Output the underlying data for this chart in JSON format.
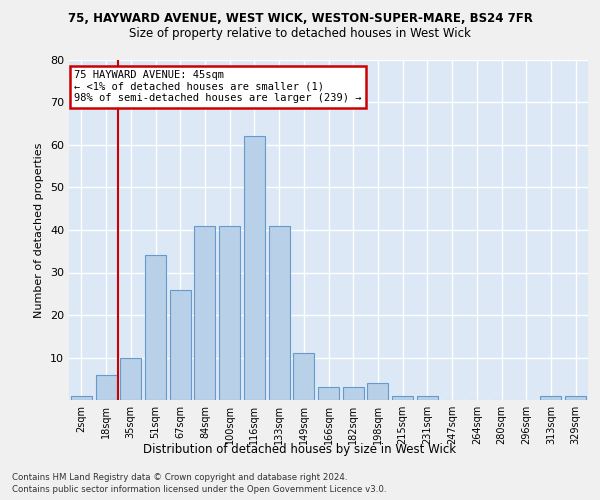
{
  "title1": "75, HAYWARD AVENUE, WEST WICK, WESTON-SUPER-MARE, BS24 7FR",
  "title2": "Size of property relative to detached houses in West Wick",
  "xlabel": "Distribution of detached houses by size in West Wick",
  "ylabel": "Number of detached properties",
  "bins": [
    "2sqm",
    "18sqm",
    "35sqm",
    "51sqm",
    "67sqm",
    "84sqm",
    "100sqm",
    "116sqm",
    "133sqm",
    "149sqm",
    "166sqm",
    "182sqm",
    "198sqm",
    "215sqm",
    "231sqm",
    "247sqm",
    "264sqm",
    "280sqm",
    "296sqm",
    "313sqm",
    "329sqm"
  ],
  "values": [
    1,
    6,
    10,
    34,
    26,
    41,
    41,
    62,
    41,
    11,
    3,
    3,
    4,
    1,
    1,
    0,
    0,
    0,
    0,
    1,
    1
  ],
  "bar_color": "#b8d0e8",
  "bar_edge_color": "#6699cc",
  "annotation_title": "75 HAYWARD AVENUE: 45sqm",
  "annotation_line1": "← <1% of detached houses are smaller (1)",
  "annotation_line2": "98% of semi-detached houses are larger (239) →",
  "annotation_box_color": "#ffffff",
  "annotation_box_edge": "#cc0000",
  "vline_x": 1.5,
  "ylim": [
    0,
    80
  ],
  "yticks": [
    0,
    10,
    20,
    30,
    40,
    50,
    60,
    70,
    80
  ],
  "footer1": "Contains HM Land Registry data © Crown copyright and database right 2024.",
  "footer2": "Contains public sector information licensed under the Open Government Licence v3.0.",
  "background_color": "#dce8f5",
  "grid_color": "#ffffff",
  "fig_bg": "#f0f0f0"
}
